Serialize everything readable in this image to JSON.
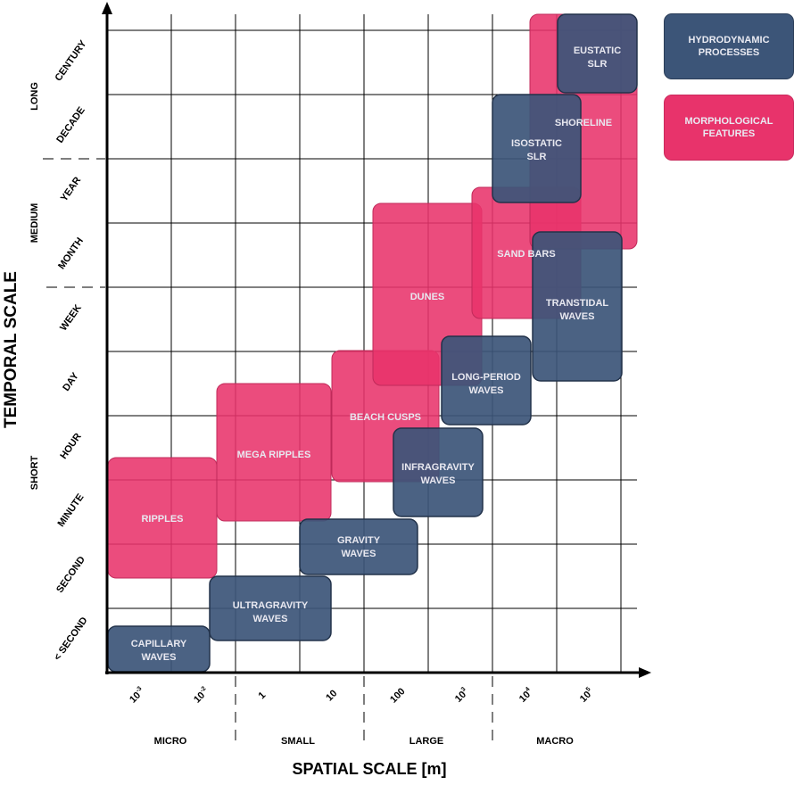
{
  "colors": {
    "hydro": "#3c5578",
    "morph": "#e8336b",
    "grid": "#000000"
  },
  "axis": {
    "y_title": "TEMPORAL SCALE",
    "x_title": "SPATIAL SCALE [m]",
    "y_ticks": [
      "< SECOND",
      "SECOND",
      "MINUTE",
      "HOUR",
      "DAY",
      "WEEK",
      "MONTH",
      "YEAR",
      "DECADE",
      "CENTURY"
    ],
    "y_groups": [
      "SHORT",
      "MEDIUM",
      "LONG"
    ],
    "x_ticks": [
      {
        "base": "10",
        "exp": "-3"
      },
      {
        "base": "10",
        "exp": "-2"
      },
      {
        "base": "1",
        "exp": ""
      },
      {
        "base": "10",
        "exp": ""
      },
      {
        "base": "100",
        "exp": ""
      },
      {
        "base": "10",
        "exp": "3"
      },
      {
        "base": "10",
        "exp": "4"
      },
      {
        "base": "10",
        "exp": "5"
      }
    ],
    "x_groups": [
      "MICRO",
      "SMALL",
      "LARGE",
      "MACRO"
    ]
  },
  "legend": {
    "hydro": [
      "HYDRODYNAMIC",
      "PROCESSES"
    ],
    "morph": [
      "MORPHOLOGICAL",
      "FEATURES"
    ]
  },
  "morphological": [
    {
      "label": [
        "RIPPLES"
      ]
    },
    {
      "label": [
        "MEGA RIPPLES"
      ]
    },
    {
      "label": [
        "BEACH CUSPS"
      ]
    },
    {
      "label": [
        "DUNES"
      ]
    },
    {
      "label": [
        "SAND BARS"
      ]
    },
    {
      "label": [
        "SHORELINE"
      ]
    }
  ],
  "hydrodynamic": [
    {
      "label": [
        "CAPILLARY",
        "WAVES"
      ]
    },
    {
      "label": [
        "ULTRAGRAVITY",
        "WAVES"
      ]
    },
    {
      "label": [
        "GRAVITY",
        "WAVES"
      ]
    },
    {
      "label": [
        "INFRAGRAVITY",
        "WAVES"
      ]
    },
    {
      "label": [
        "LONG-PERIOD",
        "WAVES"
      ]
    },
    {
      "label": [
        "TRANSTIDAL",
        "WAVES"
      ]
    },
    {
      "label": [
        "ISOSTATIC",
        "SLR"
      ]
    },
    {
      "label": [
        "EUSTATIC",
        "SLR"
      ]
    }
  ]
}
